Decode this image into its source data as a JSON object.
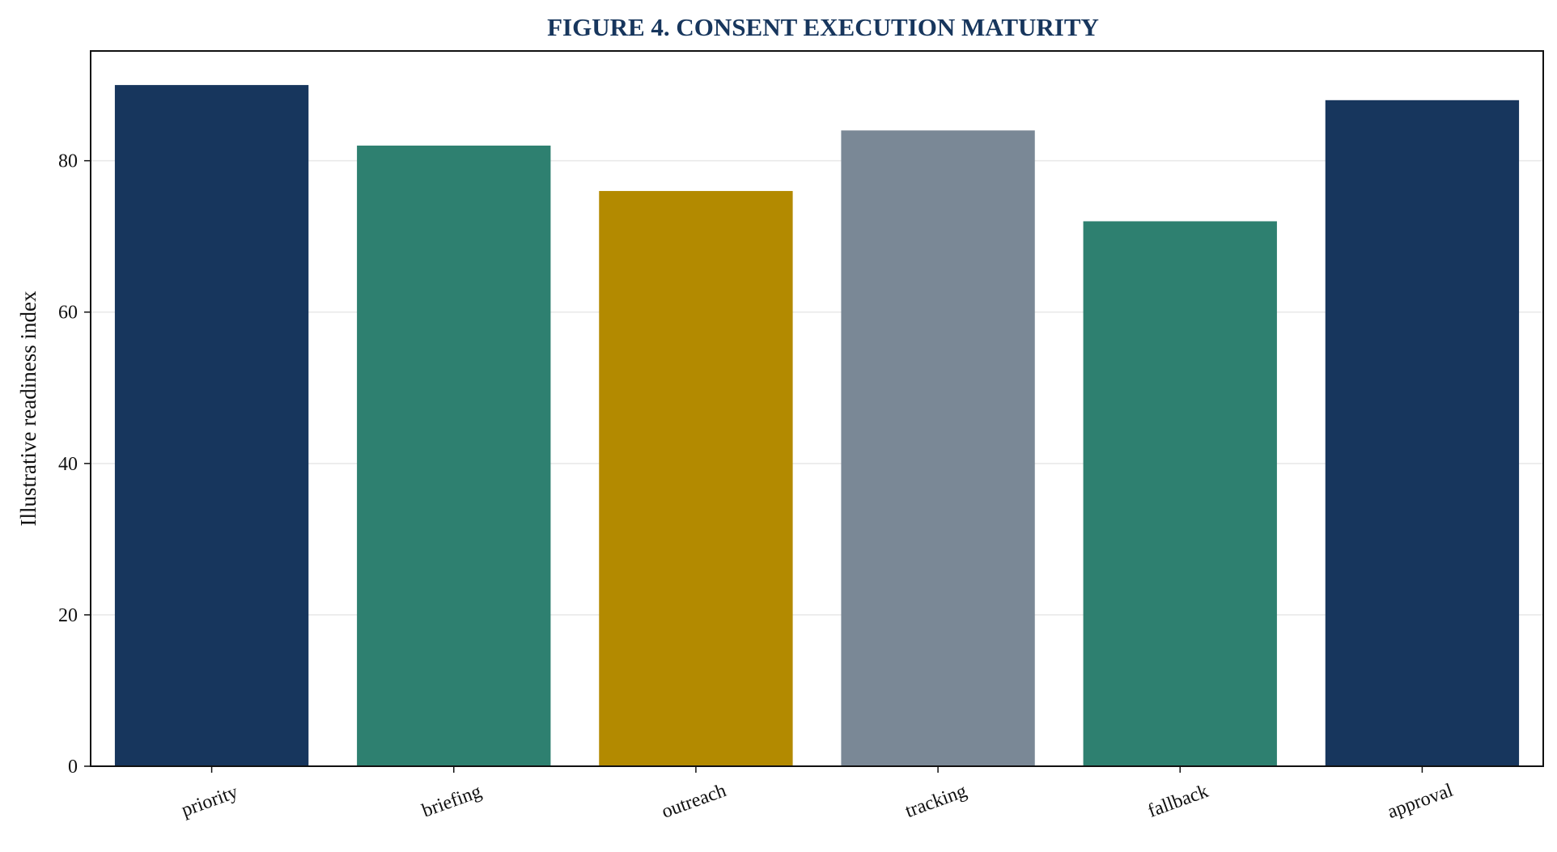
{
  "chart_data": {
    "type": "bar",
    "title": "FIGURE 4. CONSENT EXECUTION MATURITY",
    "ylabel": "Illustrative readiness index",
    "xlabel": "",
    "categories": [
      "priority",
      "briefing",
      "outreach",
      "tracking",
      "fallback",
      "approval"
    ],
    "values": [
      90,
      82,
      76,
      84,
      72,
      88
    ],
    "colors": [
      "#17365d",
      "#2e8070",
      "#b38a00",
      "#7a8896",
      "#2e8070",
      "#17365d"
    ],
    "ylim": [
      0,
      94.5
    ],
    "yticks": [
      0,
      20,
      40,
      60,
      80
    ],
    "grid": "horizontal",
    "legend": "none",
    "title_color": "#17365d",
    "grid_color": "#e8e8e8"
  }
}
